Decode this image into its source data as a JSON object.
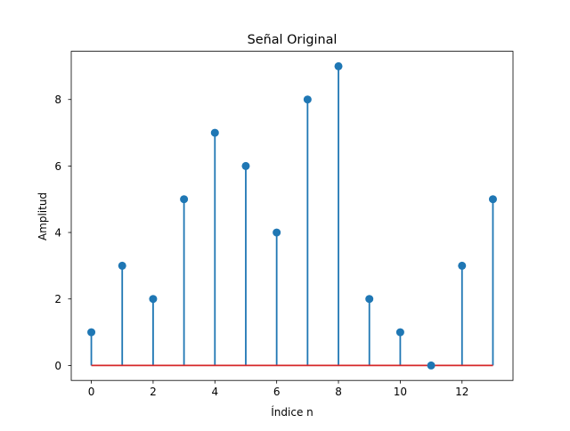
{
  "chart_data": {
    "type": "stem",
    "title": "Señal Original",
    "xlabel": "Índice n",
    "ylabel": "Amplitud",
    "x": [
      0,
      1,
      2,
      3,
      4,
      5,
      6,
      7,
      8,
      9,
      10,
      11,
      12,
      13
    ],
    "values": [
      1,
      3,
      2,
      5,
      7,
      6,
      4,
      8,
      9,
      2,
      1,
      0,
      3,
      5
    ],
    "xlim": [
      -0.65,
      13.65
    ],
    "ylim": [
      -0.45,
      9.45
    ],
    "xticks": [
      0,
      2,
      4,
      6,
      8,
      10,
      12
    ],
    "yticks": [
      0,
      2,
      4,
      6,
      8
    ],
    "grid": false,
    "colors": {
      "stem": "#1f77b4",
      "baseline": "#d62728",
      "axes": "#000000"
    }
  }
}
